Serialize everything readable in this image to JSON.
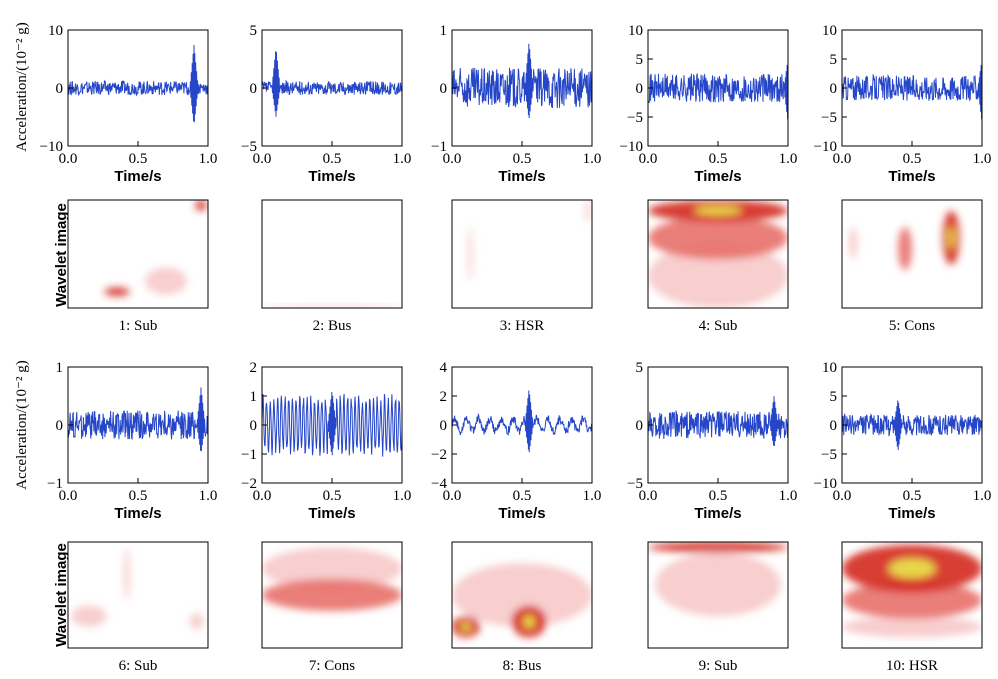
{
  "labels": {
    "x_axis": "Time/s",
    "y_axis_signal": "Acceleration/(10⁻² g)",
    "y_axis_wavelet": "Wavelet image"
  },
  "colors": {
    "signal": "#2546c8",
    "wavelet_low": "#f7c9c9",
    "wavelet_mid": "#e8706a",
    "wavelet_high": "#d42a1e",
    "wavelet_peak": "#e9d64a"
  },
  "chart_data": [
    {
      "type": "line",
      "id": 1,
      "caption": "1: Sub",
      "ylim": [
        -10,
        10
      ],
      "yticks": [
        "10",
        "0",
        "−10"
      ],
      "xticks": [
        "0.0",
        "0.5",
        "1.0"
      ],
      "xlim": [
        0,
        1
      ],
      "summary": {
        "baseline_amplitude": 1.2,
        "peak_max": 7.5,
        "peak_min": -6.5,
        "peak_time": 0.9
      },
      "wavelet": {
        "blobs": [
          {
            "x": 0.35,
            "y": 0.85,
            "w": 0.18,
            "h": 0.08,
            "level": "high"
          },
          {
            "x": 0.95,
            "y": 0.05,
            "w": 0.08,
            "h": 0.1,
            "level": "high"
          },
          {
            "x": 0.7,
            "y": 0.75,
            "w": 0.3,
            "h": 0.25,
            "level": "low"
          }
        ]
      }
    },
    {
      "type": "line",
      "id": 2,
      "caption": "2: Bus",
      "ylim": [
        -5,
        5
      ],
      "yticks": [
        "5",
        "0",
        "−5"
      ],
      "xticks": [
        "0.0",
        "0.5",
        "1.0"
      ],
      "xlim": [
        0,
        1
      ],
      "summary": {
        "baseline_amplitude": 0.6,
        "peak_max": 3.5,
        "peak_min": -2.5,
        "peak_time": 0.1
      },
      "wavelet": {
        "blobs": [
          {
            "x": 0.5,
            "y": 0.98,
            "w": 1.0,
            "h": 0.03,
            "level": "low"
          }
        ]
      }
    },
    {
      "type": "line",
      "id": 3,
      "caption": "3: HSR",
      "ylim": [
        -1,
        1
      ],
      "yticks": [
        "1",
        "0",
        "−1"
      ],
      "xticks": [
        "0.0",
        "0.5",
        "1.0"
      ],
      "xlim": [
        0,
        1
      ],
      "summary": {
        "baseline_amplitude": 0.35,
        "peak_max": 0.8,
        "peak_min": -0.55,
        "peak_time": 0.55
      },
      "wavelet": {
        "blobs": [
          {
            "x": 0.13,
            "y": 0.5,
            "w": 0.03,
            "h": 0.5,
            "level": "low"
          },
          {
            "x": 0.97,
            "y": 0.1,
            "w": 0.04,
            "h": 0.2,
            "level": "low"
          }
        ]
      }
    },
    {
      "type": "line",
      "id": 4,
      "caption": "4: Sub",
      "ylim": [
        -10,
        10
      ],
      "yticks": [
        "10",
        "5",
        "0",
        "−5",
        "−10"
      ],
      "xticks": [
        "0.0",
        "0.5",
        "1.0"
      ],
      "xlim": [
        0,
        1
      ],
      "summary": {
        "baseline_amplitude": 2.5,
        "peak_max": 5.0,
        "peak_min": -6.0,
        "peak_time": 1.0
      },
      "wavelet": {
        "blobs": [
          {
            "x": 0.5,
            "y": 0.1,
            "w": 1.0,
            "h": 0.2,
            "level": "high"
          },
          {
            "x": 0.5,
            "y": 0.35,
            "w": 1.0,
            "h": 0.4,
            "level": "mid"
          },
          {
            "x": 0.5,
            "y": 0.7,
            "w": 1.0,
            "h": 0.6,
            "level": "low"
          }
        ]
      }
    },
    {
      "type": "line",
      "id": 5,
      "caption": "5: Cons",
      "ylim": [
        -10,
        10
      ],
      "yticks": [
        "10",
        "5",
        "0",
        "−5",
        "−10"
      ],
      "xticks": [
        "0.0",
        "0.5",
        "1.0"
      ],
      "xlim": [
        0,
        1
      ],
      "summary": {
        "baseline_amplitude": 2.2,
        "peak_max": 5.0,
        "peak_min": -6.0,
        "peak_time": 1.0
      },
      "wavelet": {
        "blobs": [
          {
            "x": 0.78,
            "y": 0.35,
            "w": 0.12,
            "h": 0.5,
            "level": "high"
          },
          {
            "x": 0.45,
            "y": 0.45,
            "w": 0.1,
            "h": 0.4,
            "level": "mid"
          },
          {
            "x": 0.08,
            "y": 0.4,
            "w": 0.06,
            "h": 0.3,
            "level": "low"
          }
        ]
      }
    },
    {
      "type": "line",
      "id": 6,
      "caption": "6: Sub",
      "ylim": [
        -1,
        1
      ],
      "yticks": [
        "1",
        "0",
        "−1"
      ],
      "xticks": [
        "0.0",
        "0.5",
        "1.0"
      ],
      "xlim": [
        0,
        1
      ],
      "summary": {
        "baseline_amplitude": 0.25,
        "peak_max": 0.65,
        "peak_min": -0.5,
        "peak_time": 0.95
      },
      "wavelet": {
        "blobs": [
          {
            "x": 0.15,
            "y": 0.7,
            "w": 0.25,
            "h": 0.2,
            "level": "low"
          },
          {
            "x": 0.92,
            "y": 0.75,
            "w": 0.1,
            "h": 0.15,
            "level": "low"
          },
          {
            "x": 0.42,
            "y": 0.3,
            "w": 0.04,
            "h": 0.5,
            "level": "low"
          }
        ]
      }
    },
    {
      "type": "line",
      "id": 7,
      "caption": "7: Cons",
      "ylim": [
        -2,
        2
      ],
      "yticks": [
        "2",
        "1",
        "0",
        "−1",
        "−2"
      ],
      "xticks": [
        "0.0",
        "0.5",
        "1.0"
      ],
      "xlim": [
        0,
        1
      ],
      "summary": {
        "baseline_amplitude": 0.9,
        "peak_max": 1.2,
        "peak_min": -1.1,
        "peak_time": 0.5
      },
      "wavelet": {
        "blobs": [
          {
            "x": 0.5,
            "y": 0.5,
            "w": 1.0,
            "h": 0.3,
            "level": "mid"
          },
          {
            "x": 0.5,
            "y": 0.25,
            "w": 1.0,
            "h": 0.4,
            "level": "low"
          }
        ]
      }
    },
    {
      "type": "line",
      "id": 8,
      "caption": "8: Bus",
      "ylim": [
        -4,
        4
      ],
      "yticks": [
        "4",
        "2",
        "0",
        "−2",
        "−4"
      ],
      "xticks": [
        "0.0",
        "0.5",
        "1.0"
      ],
      "xlim": [
        0,
        1
      ],
      "summary": {
        "baseline_amplitude": 0.7,
        "peak_max": 2.5,
        "peak_min": -2.0,
        "peak_time": 0.55
      },
      "wavelet": {
        "blobs": [
          {
            "x": 0.55,
            "y": 0.75,
            "w": 0.25,
            "h": 0.3,
            "level": "high"
          },
          {
            "x": 0.1,
            "y": 0.8,
            "w": 0.2,
            "h": 0.2,
            "level": "high"
          },
          {
            "x": 0.5,
            "y": 0.5,
            "w": 1.0,
            "h": 0.6,
            "level": "low"
          }
        ]
      }
    },
    {
      "type": "line",
      "id": 9,
      "caption": "9: Sub",
      "ylim": [
        -5,
        5
      ],
      "yticks": [
        "5",
        "0",
        "−5"
      ],
      "xticks": [
        "0.0",
        "0.5",
        "1.0"
      ],
      "xlim": [
        0,
        1
      ],
      "summary": {
        "baseline_amplitude": 1.2,
        "peak_max": 2.5,
        "peak_min": -2.0,
        "peak_time": 0.9
      },
      "wavelet": {
        "blobs": [
          {
            "x": 0.5,
            "y": 0.05,
            "w": 1.0,
            "h": 0.1,
            "level": "high"
          },
          {
            "x": 0.5,
            "y": 0.4,
            "w": 0.9,
            "h": 0.6,
            "level": "low"
          }
        ]
      }
    },
    {
      "type": "line",
      "id": 10,
      "caption": "10: HSR",
      "ylim": [
        -10,
        10
      ],
      "yticks": [
        "10",
        "5",
        "0",
        "−5",
        "−10"
      ],
      "xticks": [
        "0.0",
        "0.5",
        "1.0"
      ],
      "xlim": [
        0,
        1
      ],
      "summary": {
        "baseline_amplitude": 1.8,
        "peak_max": 4.5,
        "peak_min": -4.5,
        "peak_time": 0.4
      },
      "wavelet": {
        "blobs": [
          {
            "x": 0.5,
            "y": 0.25,
            "w": 1.0,
            "h": 0.45,
            "level": "high"
          },
          {
            "x": 0.5,
            "y": 0.55,
            "w": 1.0,
            "h": 0.35,
            "level": "mid"
          },
          {
            "x": 0.5,
            "y": 0.8,
            "w": 1.0,
            "h": 0.2,
            "level": "low"
          }
        ]
      }
    }
  ]
}
